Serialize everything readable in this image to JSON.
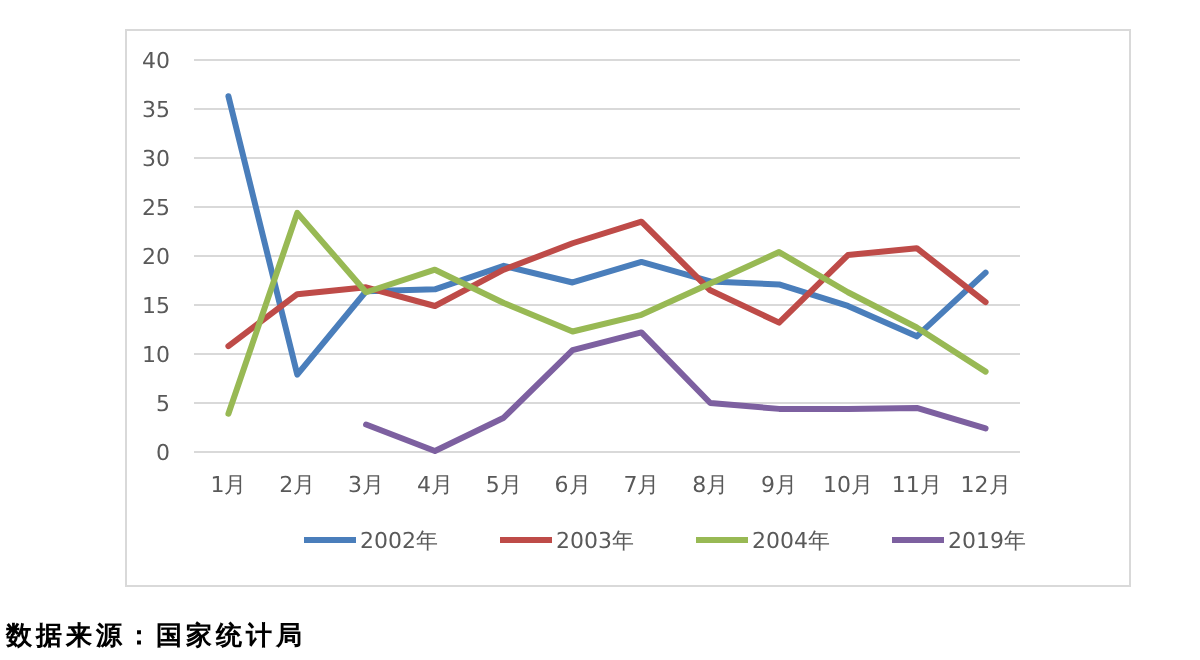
{
  "chart_data": {
    "type": "line",
    "categories": [
      "1月",
      "2月",
      "3月",
      "4月",
      "5月",
      "6月",
      "7月",
      "8月",
      "9月",
      "10月",
      "11月",
      "12月"
    ],
    "series": [
      {
        "name": "2002年",
        "color": "#4a7ebb",
        "values": [
          36.3,
          7.9,
          16.4,
          16.6,
          19.0,
          17.3,
          19.4,
          17.4,
          17.1,
          14.9,
          11.8,
          18.3
        ]
      },
      {
        "name": "2003年",
        "color": "#be4b48",
        "values": [
          10.8,
          16.1,
          16.8,
          14.9,
          18.6,
          21.3,
          23.5,
          16.5,
          13.2,
          20.1,
          20.8,
          15.3
        ]
      },
      {
        "name": "2004年",
        "color": "#98b954",
        "values": [
          3.9,
          24.4,
          16.3,
          18.6,
          15.2,
          12.3,
          14.0,
          17.2,
          20.4,
          16.3,
          12.7,
          8.2
        ]
      },
      {
        "name": "2019年",
        "color": "#7d60a0",
        "values": [
          null,
          null,
          2.8,
          0.1,
          3.5,
          10.4,
          12.2,
          5.0,
          4.4,
          4.4,
          4.5,
          2.4
        ]
      }
    ],
    "ylim": [
      0,
      40
    ],
    "yticks": [
      0,
      5,
      10,
      15,
      20,
      25,
      30,
      35,
      40
    ],
    "grid": "y",
    "legend": "bottom",
    "marker": "none",
    "line_style": "solid",
    "annotations": [
      "数据来源：国家统计局"
    ]
  }
}
